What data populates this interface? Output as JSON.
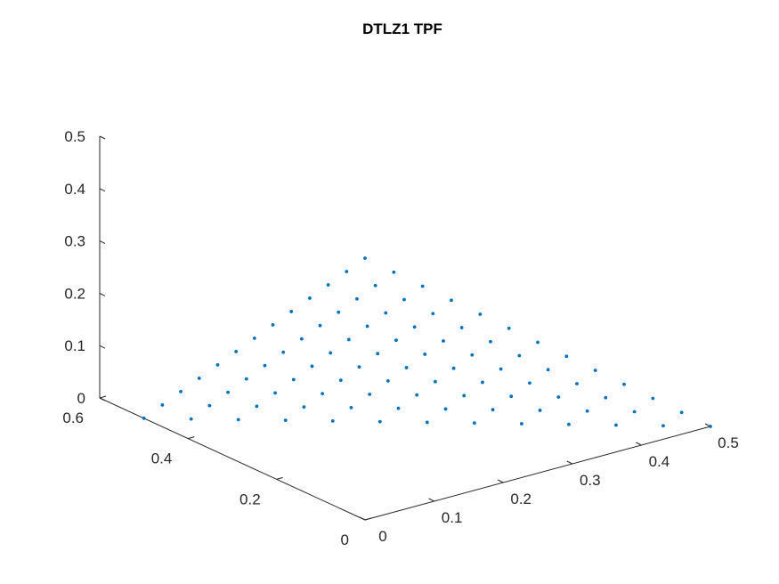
{
  "chart_data": {
    "type": "scatter",
    "title": "DTLZ1 TPF",
    "projection": "3d",
    "xlabel": "",
    "ylabel": "",
    "zlabel": "",
    "xlim": [
      0,
      0.5
    ],
    "ylim": [
      0,
      0.6
    ],
    "zlim": [
      0,
      0.5
    ],
    "x_ticks": [
      "0",
      "0.1",
      "0.2",
      "0.3",
      "0.4",
      "0.5"
    ],
    "y_ticks": [
      "0",
      "0.2",
      "0.4",
      "0.6"
    ],
    "z_ticks": [
      "0",
      "0.1",
      "0.2",
      "0.3",
      "0.4",
      "0.5"
    ],
    "grid": false,
    "marker_color": "#0072BD",
    "surface": "x + y + z = 0.5",
    "grid_divisions": 12
  }
}
